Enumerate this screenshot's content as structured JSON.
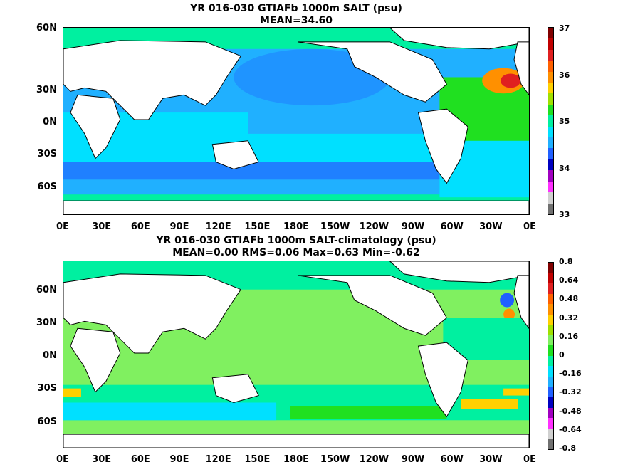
{
  "chart_data": [
    {
      "type": "heatmap",
      "title": "YR 016-030 GTIAFb 1000m SALT (psu)",
      "subtitle": "MEAN=34.60",
      "xticks": [
        "0E",
        "30E",
        "60E",
        "90E",
        "120E",
        "150E",
        "180E",
        "150W",
        "120W",
        "90W",
        "60W",
        "30W",
        "0E"
      ],
      "yticks": [
        "60N",
        "30N",
        "0N",
        "30S",
        "60S"
      ],
      "colorbar": {
        "labels": [
          "37",
          "36",
          "35",
          "34",
          "33"
        ],
        "colors": [
          "#800000",
          "#c00000",
          "#e02020",
          "#ff6000",
          "#ff9000",
          "#ffd000",
          "#a0e000",
          "#20e020",
          "#00f0a0",
          "#00e0ff",
          "#20b0ff",
          "#2060ff",
          "#0000c0",
          "#a000c0",
          "#ff30ff",
          "#d0d0d0",
          "#707070"
        ]
      },
      "stats": {
        "mean": 34.6
      }
    },
    {
      "type": "heatmap",
      "title": "YR 016-030 GTIAFb 1000m SALT-climatology (psu)",
      "subtitle": "MEAN=0.00   RMS=0.06   Max=0.63   Min=-0.62",
      "xticks": [
        "0E",
        "30E",
        "60E",
        "90E",
        "120E",
        "150E",
        "180E",
        "150W",
        "120W",
        "90W",
        "60W",
        "30W",
        "0E"
      ],
      "yticks": [
        "60N",
        "30N",
        "0N",
        "30S",
        "60S"
      ],
      "colorbar": {
        "labels": [
          "0.8",
          "0.64",
          "0.48",
          "0.32",
          "0.16",
          "0",
          "-0.16",
          "-0.32",
          "-0.48",
          "-0.64",
          "-0.8"
        ],
        "colors": [
          "#800000",
          "#c00000",
          "#e02020",
          "#ff6000",
          "#ff9000",
          "#ffd000",
          "#a0e000",
          "#80f060",
          "#20e020",
          "#00f0a0",
          "#00e0ff",
          "#20b0ff",
          "#2060ff",
          "#0000c0",
          "#a000c0",
          "#ff30ff",
          "#d0d0d0",
          "#707070"
        ]
      },
      "stats": {
        "mean": 0.0,
        "rms": 0.06,
        "max": 0.63,
        "min": -0.62
      }
    }
  ]
}
